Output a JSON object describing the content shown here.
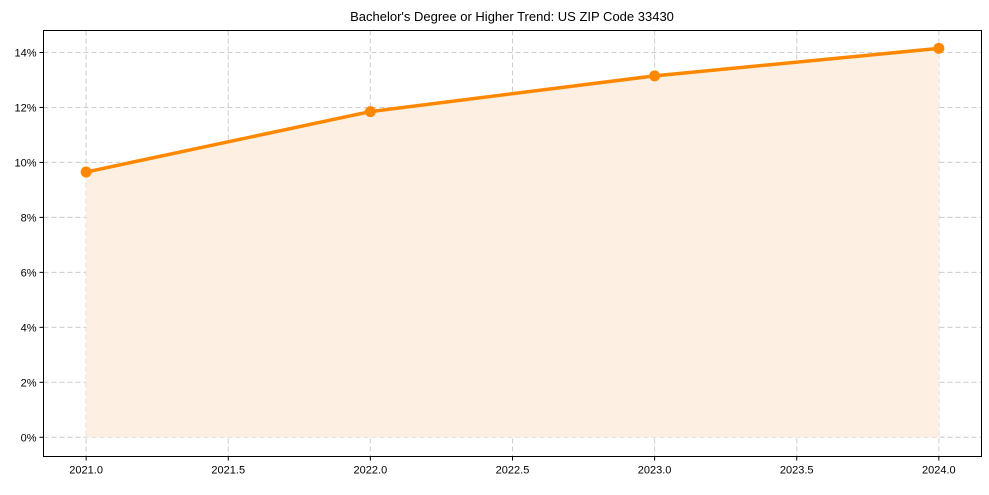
{
  "chart_data": {
    "type": "line",
    "title": "Bachelor's Degree or Higher Trend: US ZIP Code 33430",
    "xlabel": "",
    "ylabel": "",
    "x": [
      2021,
      2022,
      2023,
      2024
    ],
    "series": [
      {
        "name": "Bachelor's Degree or Higher",
        "values": [
          9.65,
          11.85,
          13.15,
          14.15
        ],
        "color": "#ff8800",
        "fill": "#fdf0e2"
      }
    ],
    "xlim": [
      2020.85,
      2024.15
    ],
    "ylim": [
      -0.7,
      14.8
    ],
    "xticks": [
      2021.0,
      2021.5,
      2022.0,
      2022.5,
      2023.0,
      2023.5,
      2024.0
    ],
    "xtick_labels": [
      "2021.0",
      "2021.5",
      "2022.0",
      "2022.5",
      "2023.0",
      "2023.5",
      "2024.0"
    ],
    "yticks": [
      0,
      2,
      4,
      6,
      8,
      10,
      12,
      14
    ],
    "ytick_labels": [
      "0%",
      "2%",
      "4%",
      "6%",
      "8%",
      "10%",
      "12%",
      "14%"
    ],
    "grid": true,
    "legend": "none"
  }
}
